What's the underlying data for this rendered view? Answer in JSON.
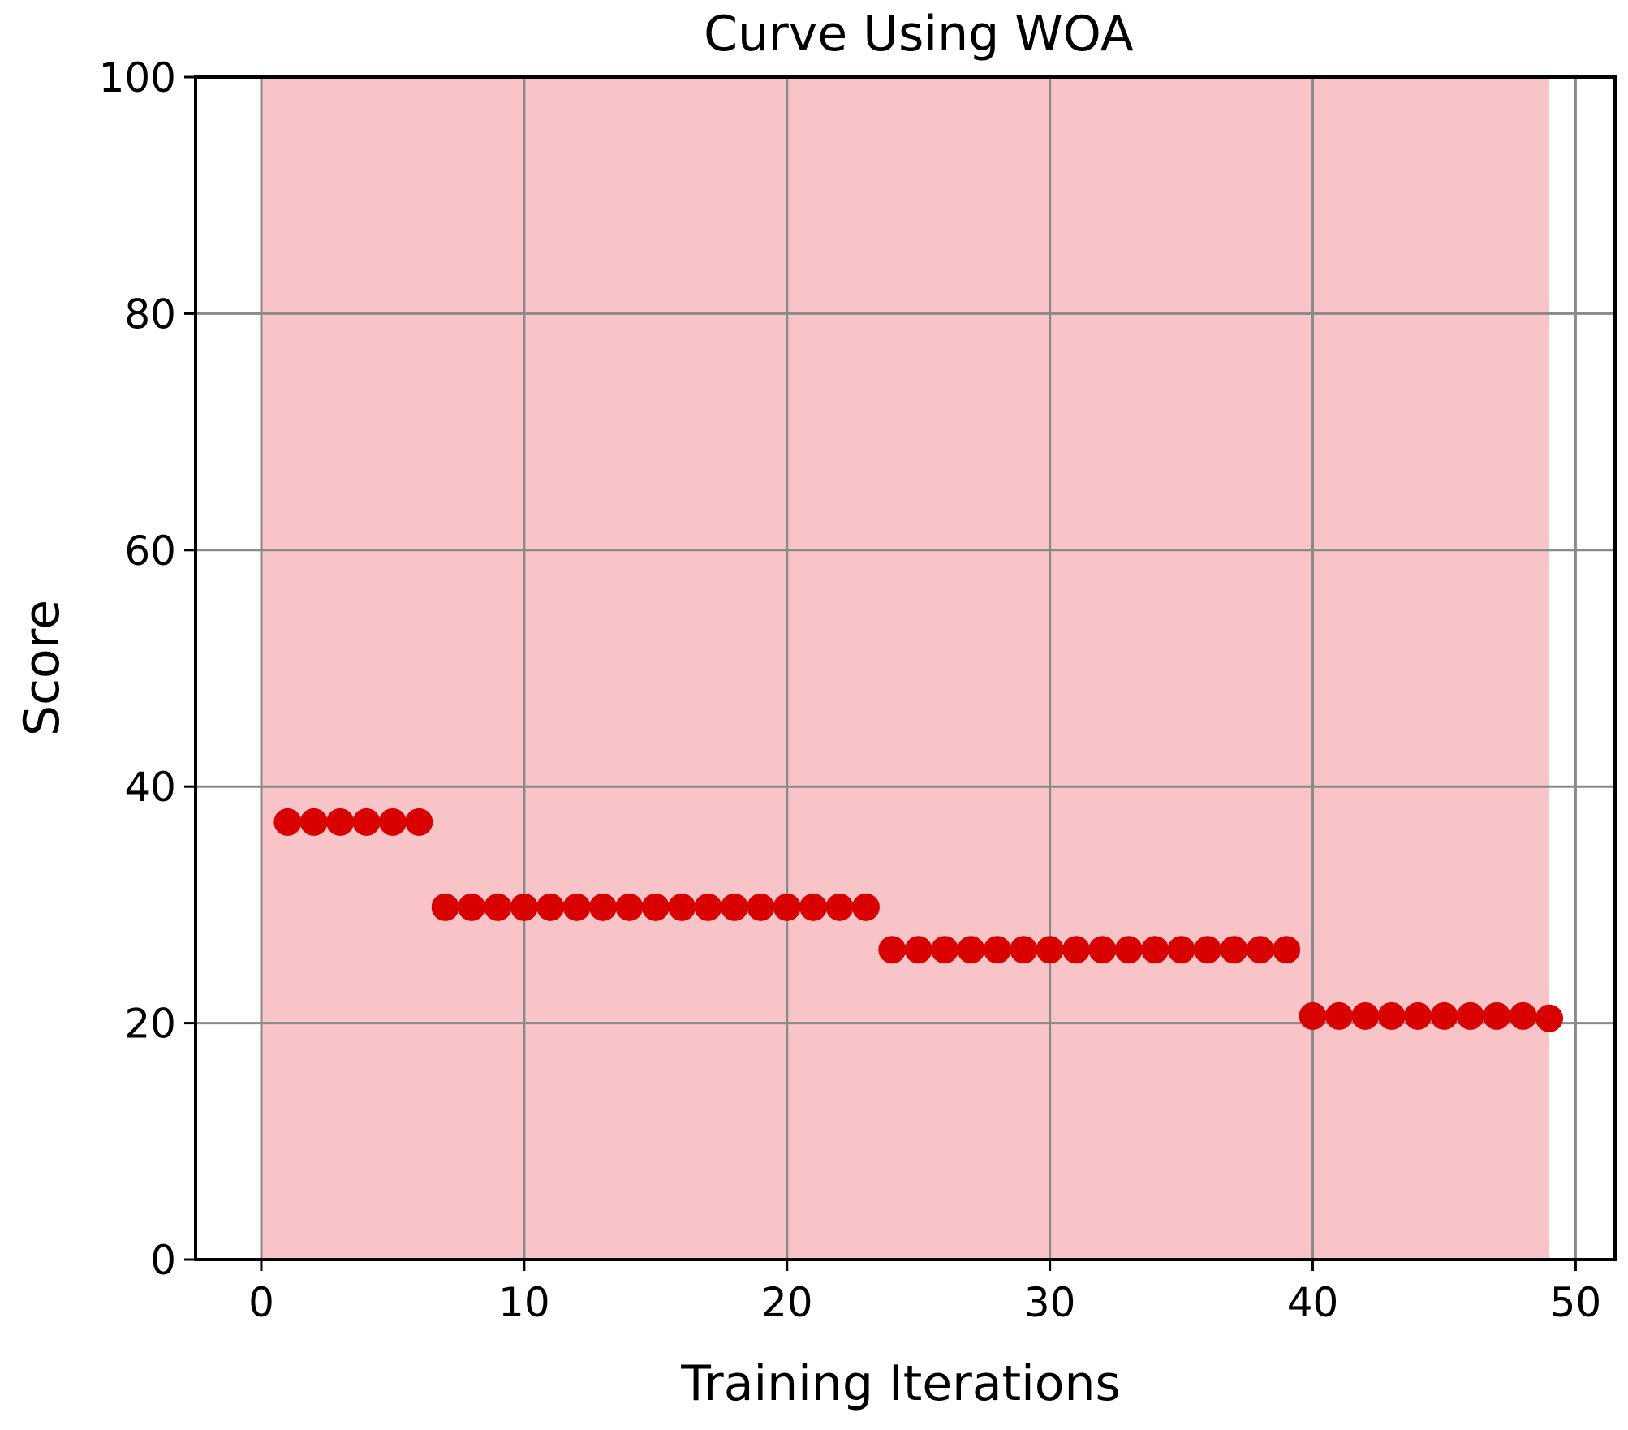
{
  "chart_data": {
    "type": "scatter",
    "title": "Curve Using WOA",
    "xlabel": "Training Iterations",
    "ylabel": "Score",
    "xlim": [
      -2.5,
      51.5
    ],
    "ylim": [
      0,
      100
    ],
    "xticks": [
      0,
      10,
      20,
      30,
      40,
      50
    ],
    "yticks": [
      0,
      20,
      40,
      60,
      80,
      100
    ],
    "xtick_labels": [
      "0",
      "10",
      "20",
      "30",
      "40",
      "50"
    ],
    "ytick_labels": [
      "0",
      "20",
      "40",
      "60",
      "80",
      "100"
    ],
    "grid": true,
    "shaded_region": {
      "x": [
        0,
        49
      ],
      "color": "#f8c4c8"
    },
    "marker_color": "#d90000",
    "series": [
      {
        "x": [
          1,
          2,
          3,
          4,
          5,
          6,
          7,
          8,
          9,
          10,
          11,
          12,
          13,
          14,
          15,
          16,
          17,
          18,
          19,
          20,
          21,
          22,
          23,
          24,
          25,
          26,
          27,
          28,
          29,
          30,
          31,
          32,
          33,
          34,
          35,
          36,
          37,
          38,
          39,
          40,
          41,
          42,
          43,
          44,
          45,
          46,
          47,
          48,
          49
        ],
        "y": [
          37,
          37,
          37,
          37,
          37,
          37,
          29.8,
          29.8,
          29.8,
          29.8,
          29.8,
          29.8,
          29.8,
          29.8,
          29.8,
          29.8,
          29.8,
          29.8,
          29.8,
          29.8,
          29.8,
          29.8,
          29.8,
          26.2,
          26.2,
          26.2,
          26.2,
          26.2,
          26.2,
          26.2,
          26.2,
          26.2,
          26.2,
          26.2,
          26.2,
          26.2,
          26.2,
          26.2,
          26.2,
          20.6,
          20.6,
          20.6,
          20.6,
          20.6,
          20.6,
          20.6,
          20.6,
          20.6,
          20.4
        ]
      }
    ]
  }
}
